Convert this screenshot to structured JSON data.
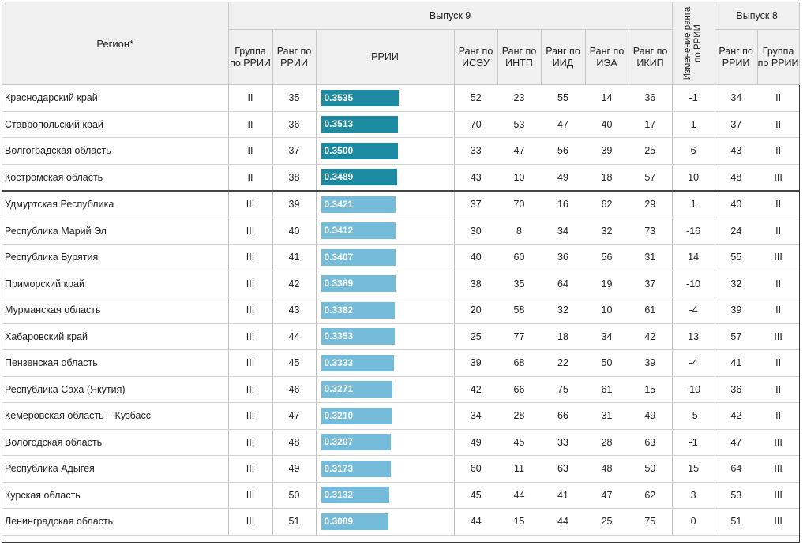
{
  "header": {
    "region": "Регион*",
    "release9": "Выпуск 9",
    "release8": "Выпуск 8",
    "group_rrii": "Группа по РРИИ",
    "rank_rrii": "Ранг по РРИИ",
    "rrii": "РРИИ",
    "rank_iseu": "Ранг по ИСЭУ",
    "rank_intp": "Ранг по ИНТП",
    "rank_iid": "Ранг по ИИД",
    "rank_iea": "Ранг по ИЭА",
    "rank_ikip": "Ранг по ИКИП",
    "rank_change": "Изменение ранга по РРИИ",
    "rank_rrii_8": "Ранг по РРИИ",
    "group_rrii_8": "Группа по РРИИ"
  },
  "colors": {
    "dark_bar": "#1c8ba1",
    "light_bar": "#74bcd9"
  },
  "rows": [
    {
      "region": "Краснодарский край",
      "group": "II",
      "rank": "35",
      "rrii": "0.3535",
      "iseu": "52",
      "intp": "23",
      "iid": "55",
      "iea": "14",
      "ikip": "36",
      "change": "-1",
      "rank8": "34",
      "group8": "II"
    },
    {
      "region": "Ставропольский край",
      "group": "II",
      "rank": "36",
      "rrii": "0.3513",
      "iseu": "70",
      "intp": "53",
      "iid": "47",
      "iea": "40",
      "ikip": "17",
      "change": "1",
      "rank8": "37",
      "group8": "II"
    },
    {
      "region": "Волгоградская область",
      "group": "II",
      "rank": "37",
      "rrii": "0.3500",
      "iseu": "33",
      "intp": "47",
      "iid": "56",
      "iea": "39",
      "ikip": "25",
      "change": "6",
      "rank8": "43",
      "group8": "II"
    },
    {
      "region": "Костромская область",
      "group": "II",
      "rank": "38",
      "rrii": "0.3489",
      "iseu": "43",
      "intp": "10",
      "iid": "49",
      "iea": "18",
      "ikip": "57",
      "change": "10",
      "rank8": "48",
      "group8": "III"
    },
    {
      "region": "Удмуртская Республика",
      "group": "III",
      "rank": "39",
      "rrii": "0.3421",
      "iseu": "37",
      "intp": "70",
      "iid": "16",
      "iea": "62",
      "ikip": "29",
      "change": "1",
      "rank8": "40",
      "group8": "II"
    },
    {
      "region": "Республика Марий Эл",
      "group": "III",
      "rank": "40",
      "rrii": "0.3412",
      "iseu": "30",
      "intp": "8",
      "iid": "34",
      "iea": "32",
      "ikip": "73",
      "change": "-16",
      "rank8": "24",
      "group8": "II"
    },
    {
      "region": "Республика Бурятия",
      "group": "III",
      "rank": "41",
      "rrii": "0.3407",
      "iseu": "40",
      "intp": "60",
      "iid": "36",
      "iea": "56",
      "ikip": "31",
      "change": "14",
      "rank8": "55",
      "group8": "III"
    },
    {
      "region": "Приморский край",
      "group": "III",
      "rank": "42",
      "rrii": "0.3389",
      "iseu": "38",
      "intp": "35",
      "iid": "64",
      "iea": "19",
      "ikip": "37",
      "change": "-10",
      "rank8": "32",
      "group8": "II"
    },
    {
      "region": "Мурманская область",
      "group": "III",
      "rank": "43",
      "rrii": "0.3382",
      "iseu": "20",
      "intp": "58",
      "iid": "32",
      "iea": "10",
      "ikip": "61",
      "change": "-4",
      "rank8": "39",
      "group8": "II"
    },
    {
      "region": "Хабаровский край",
      "group": "III",
      "rank": "44",
      "rrii": "0.3353",
      "iseu": "25",
      "intp": "77",
      "iid": "18",
      "iea": "34",
      "ikip": "42",
      "change": "13",
      "rank8": "57",
      "group8": "III"
    },
    {
      "region": "Пензенская область",
      "group": "III",
      "rank": "45",
      "rrii": "0.3333",
      "iseu": "39",
      "intp": "68",
      "iid": "22",
      "iea": "50",
      "ikip": "39",
      "change": "-4",
      "rank8": "41",
      "group8": "II"
    },
    {
      "region": "Республика Саха (Якутия)",
      "group": "III",
      "rank": "46",
      "rrii": "0.3271",
      "iseu": "42",
      "intp": "66",
      "iid": "75",
      "iea": "61",
      "ikip": "15",
      "change": "-10",
      "rank8": "36",
      "group8": "II"
    },
    {
      "region": "Кемеровская область – Кузбасс",
      "group": "III",
      "rank": "47",
      "rrii": "0.3210",
      "iseu": "34",
      "intp": "28",
      "iid": "66",
      "iea": "31",
      "ikip": "49",
      "change": "-5",
      "rank8": "42",
      "group8": "II"
    },
    {
      "region": "Вологодская область",
      "group": "III",
      "rank": "48",
      "rrii": "0.3207",
      "iseu": "49",
      "intp": "45",
      "iid": "33",
      "iea": "28",
      "ikip": "63",
      "change": "-1",
      "rank8": "47",
      "group8": "III"
    },
    {
      "region": "Республика Адыгея",
      "group": "III",
      "rank": "49",
      "rrii": "0.3173",
      "iseu": "60",
      "intp": "11",
      "iid": "63",
      "iea": "48",
      "ikip": "50",
      "change": "15",
      "rank8": "64",
      "group8": "III"
    },
    {
      "region": "Курская область",
      "group": "III",
      "rank": "50",
      "rrii": "0.3132",
      "iseu": "45",
      "intp": "44",
      "iid": "41",
      "iea": "47",
      "ikip": "62",
      "change": "3",
      "rank8": "53",
      "group8": "III"
    },
    {
      "region": "Ленинградская область",
      "group": "III",
      "rank": "51",
      "rrii": "0.3089",
      "iseu": "44",
      "intp": "15",
      "iid": "44",
      "iea": "25",
      "ikip": "75",
      "change": "0",
      "rank8": "51",
      "group8": "III"
    }
  ]
}
